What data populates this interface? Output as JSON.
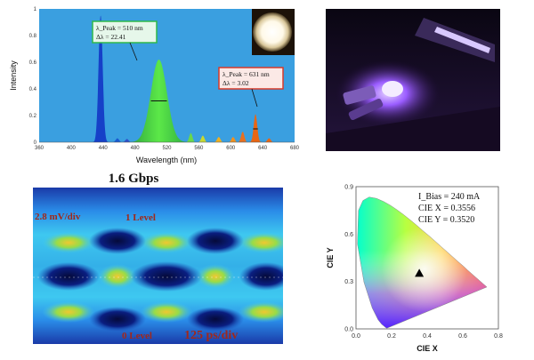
{
  "spectrum": {
    "ylabel": "Intensity",
    "xlabel": "Wavelength (nm)",
    "xticks": [
      "360",
      "400",
      "440",
      "480",
      "520",
      "560",
      "600",
      "640",
      "680"
    ],
    "yticks": [
      "0",
      "0.2",
      "0.4",
      "0.6",
      "0.8",
      "1"
    ],
    "peak1": {
      "line1": "λ_Peak = 510 nm",
      "line2": "Δλ = 22.41"
    },
    "peak2": {
      "line1": "λ_Peak = 631 nm",
      "line2": "Δλ = 3.02"
    }
  },
  "eye": {
    "title": "1.6 Gbps",
    "vscale": "2.8 mV/div",
    "level1": "1 Level",
    "level0": "0 Level",
    "tscale": "125 ps/div"
  },
  "cie": {
    "xlabel": "CIE X",
    "ylabel": "CIE Y",
    "xticks": [
      "0.0",
      "0.2",
      "0.4",
      "0.6",
      "0.8"
    ],
    "yticks": [
      "0.0",
      "0.3",
      "0.6",
      "0.9"
    ],
    "bias": "I_Bias = 240 mA",
    "cx": "CIE X = 0.3556",
    "cy": "CIE Y = 0.3520",
    "point": {
      "x": 0.3556,
      "y": 0.352
    }
  },
  "colors": {
    "plot_bg": "#3a9fe0",
    "blue_peak": "#1640c8",
    "green_peak": "#3ed23c",
    "red_peak": "#e86614",
    "green_box": "#2fb84a",
    "red_box": "#d63a2a",
    "eye_label": "#a0281c"
  },
  "chart_data": [
    {
      "type": "line",
      "title": "",
      "xlabel": "Wavelength (nm)",
      "ylabel": "Intensity",
      "xlim": [
        360,
        680
      ],
      "ylim": [
        0,
        1
      ],
      "grid": false,
      "series": [
        {
          "x": [
            420,
            430,
            435,
            440,
            445,
            452,
            470,
            490,
            500,
            510,
            520,
            530,
            545,
            560,
            580,
            600,
            615,
            625,
            631,
            637,
            645,
            660
          ],
          "y": [
            0,
            0.02,
            0.3,
            0.95,
            0.3,
            0.02,
            0.02,
            0.08,
            0.35,
            0.62,
            0.45,
            0.2,
            0.06,
            0.04,
            0.03,
            0.04,
            0.07,
            0.05,
            0.21,
            0.05,
            0.03,
            0
          ]
        }
      ],
      "annotations": [
        "λ_Peak = 510 nm  Δλ = 22.41",
        "λ_Peak = 631 nm  Δλ = 3.02"
      ]
    },
    {
      "type": "scatter",
      "title": "",
      "xlabel": "CIE X",
      "ylabel": "CIE Y",
      "xlim": [
        0,
        0.8
      ],
      "ylim": [
        0,
        0.9
      ],
      "series": [
        {
          "x": [
            0.3556
          ],
          "y": [
            0.352
          ]
        }
      ],
      "annotations": [
        "I_Bias = 240 mA",
        "CIE X = 0.3556",
        "CIE Y = 0.3520"
      ]
    }
  ]
}
